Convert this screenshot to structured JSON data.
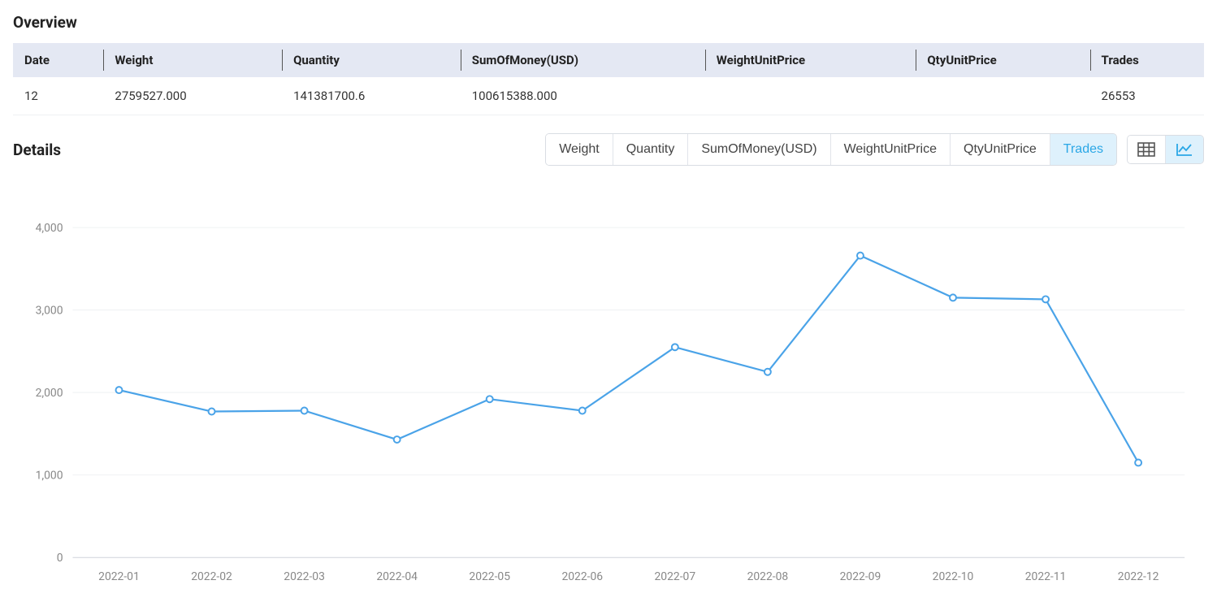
{
  "overview": {
    "title": "Overview",
    "columns": [
      "Date",
      "Weight",
      "Quantity",
      "SumOfMoney(USD)",
      "WeightUnitPrice",
      "QtyUnitPrice",
      "Trades"
    ],
    "row": {
      "date": "12",
      "weight": "2759527.000",
      "quantity": "141381700.6",
      "sum_of_money": "100615388.000",
      "weight_unit_price": "",
      "qty_unit_price": "",
      "trades": "26553"
    }
  },
  "details": {
    "title": "Details",
    "tabs": [
      "Weight",
      "Quantity",
      "SumOfMoney(USD)",
      "WeightUnitPrice",
      "QtyUnitPrice",
      "Trades"
    ],
    "active_tab": "Trades",
    "view_modes": {
      "table_active": false,
      "chart_active": true
    }
  },
  "chart": {
    "type": "line",
    "line_color": "#4aa3e8",
    "marker_fill": "#ffffff",
    "marker_radius": 4,
    "grid_color": "#eef0f2",
    "baseline_color": "#d0d4da",
    "axis_label_color": "#888888",
    "axis_label_fontsize": 14,
    "background_color": "#ffffff",
    "y": {
      "min": 0,
      "max": 4200,
      "ticks": [
        0,
        1000,
        2000,
        3000,
        4000
      ],
      "tick_labels": [
        "0",
        "1,000",
        "2,000",
        "3,000",
        "4,000"
      ]
    },
    "x_labels": [
      "2022-01",
      "2022-02",
      "2022-03",
      "2022-04",
      "2022-05",
      "2022-06",
      "2022-07",
      "2022-08",
      "2022-09",
      "2022-10",
      "2022-11",
      "2022-12"
    ],
    "values": [
      2030,
      1770,
      1780,
      1430,
      1920,
      1780,
      2550,
      2250,
      3660,
      3150,
      3130,
      1150
    ]
  },
  "colors": {
    "header_bg": "#e4e8f3",
    "tab_active_bg": "#def1fc",
    "tab_active_text": "#2aa7e6",
    "text": "#333333"
  }
}
